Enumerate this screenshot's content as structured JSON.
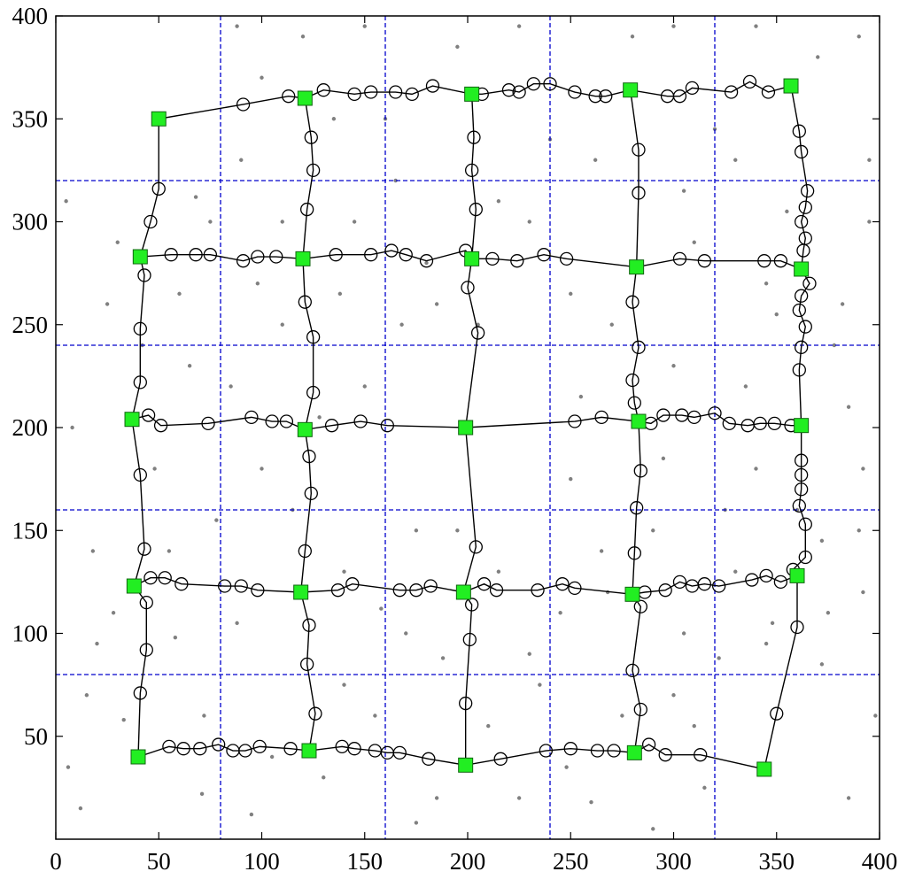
{
  "chart_data": {
    "type": "scatter",
    "xlim": [
      0,
      400
    ],
    "ylim": [
      0,
      400
    ],
    "xticks": [
      0,
      50,
      100,
      150,
      200,
      250,
      300,
      350,
      400
    ],
    "yticks": [
      50,
      100,
      150,
      200,
      250,
      300,
      350,
      400
    ],
    "grid_x": [
      80,
      160,
      240,
      320
    ],
    "grid_y": [
      80,
      160,
      240,
      320
    ],
    "grid_color": "#0000cc",
    "points": {
      "color": "#808080",
      "x": [
        12,
        33,
        71,
        95,
        130,
        175,
        210,
        260,
        300,
        315,
        20,
        55,
        88,
        140,
        170,
        230,
        265,
        305,
        345,
        390,
        8,
        65,
        100,
        150,
        250,
        300,
        340,
        385,
        25,
        75,
        110,
        145,
        185,
        230,
        270,
        310,
        350,
        395,
        90,
        120,
        160,
        195,
        240,
        280,
        320,
        370,
        395,
        5,
        30,
        60,
        85,
        115,
        140,
        175,
        215,
        245,
        290,
        330,
        375,
        398,
        385,
        360,
        335,
        255,
        250,
        205,
        180,
        135,
        100,
        88,
        150,
        225,
        300,
        340,
        390,
        18,
        48,
        72,
        105,
        155,
        185,
        225,
        275,
        290,
        310,
        330,
        355,
        378,
        392,
        372,
        325,
        295,
        268,
        235,
        188,
        158,
        128,
        98,
        68,
        42,
        15,
        6,
        28,
        58,
        78,
        110,
        165,
        215,
        262,
        305,
        345,
        382,
        392,
        372,
        348,
        322,
        248,
        195,
        168,
        138
      ],
      "y": [
        15,
        58,
        22,
        12,
        30,
        8,
        55,
        18,
        70,
        25,
        95,
        140,
        105,
        75,
        100,
        90,
        140,
        100,
        95,
        150,
        200,
        230,
        180,
        220,
        175,
        230,
        180,
        210,
        260,
        300,
        250,
        300,
        260,
        300,
        250,
        290,
        255,
        300,
        330,
        390,
        350,
        385,
        340,
        390,
        345,
        380,
        330,
        310,
        290,
        265,
        220,
        160,
        130,
        150,
        130,
        110,
        150,
        130,
        110,
        60,
        20,
        160,
        220,
        215,
        265,
        250,
        280,
        350,
        370,
        395,
        395,
        395,
        395,
        395,
        390,
        140,
        180,
        60,
        40,
        60,
        20,
        20,
        60,
        5,
        55,
        330,
        305,
        240,
        120,
        85,
        160,
        185,
        120,
        75,
        88,
        112,
        205,
        270,
        312,
        240,
        70,
        35,
        110,
        98,
        155,
        300,
        320,
        310,
        330,
        315,
        270,
        260,
        180,
        145,
        105,
        88,
        35,
        150,
        250,
        265
      ]
    },
    "paths": [
      {
        "color": "#000000",
        "x": [
          50,
          91,
          113,
          121,
          130,
          145,
          153,
          165,
          173,
          183,
          202,
          207,
          220,
          225,
          232,
          240,
          252,
          262,
          267,
          279,
          297,
          303,
          309,
          328,
          337,
          346,
          357
        ],
        "y": [
          350,
          357,
          361,
          360,
          364,
          362,
          363,
          363,
          362,
          366,
          362,
          362,
          364,
          363,
          367,
          367,
          363,
          361,
          361,
          364,
          361,
          361,
          365,
          363,
          368,
          363,
          366
        ]
      },
      {
        "color": "#000000",
        "x": [
          41,
          56,
          68,
          75,
          91,
          98,
          107,
          120,
          136,
          153,
          163,
          170,
          180,
          199,
          202,
          212,
          224,
          237,
          248,
          282,
          303,
          315,
          344,
          352,
          362
        ],
        "y": [
          283,
          284,
          284,
          284,
          281,
          283,
          283,
          282,
          284,
          284,
          286,
          284,
          281,
          286,
          282,
          282,
          281,
          284,
          282,
          278,
          282,
          281,
          281,
          281,
          277
        ]
      },
      {
        "color": "#000000",
        "x": [
          37,
          45,
          51,
          74,
          95,
          105,
          112,
          121,
          134,
          148,
          161,
          199,
          252,
          265,
          283,
          289,
          295,
          304,
          310,
          320,
          327,
          336,
          342,
          349,
          357,
          362
        ],
        "y": [
          204,
          206,
          201,
          202,
          205,
          203,
          203,
          199,
          201,
          203,
          201,
          200,
          203,
          205,
          203,
          202,
          206,
          206,
          205,
          207,
          202,
          201,
          202,
          202,
          201,
          201
        ]
      },
      {
        "color": "#000000",
        "x": [
          38,
          46,
          53,
          61,
          82,
          90,
          98,
          119,
          137,
          144,
          167,
          175,
          182,
          198,
          208,
          214,
          234,
          246,
          252,
          280,
          286,
          296,
          303,
          309,
          315,
          322,
          338,
          345,
          352,
          360
        ],
        "y": [
          123,
          127,
          127,
          124,
          123,
          123,
          121,
          120,
          121,
          124,
          121,
          121,
          123,
          120,
          124,
          121,
          121,
          124,
          122,
          119,
          120,
          121,
          125,
          123,
          124,
          123,
          126,
          128,
          125,
          128
        ]
      },
      {
        "color": "#000000",
        "x": [
          40,
          55,
          62,
          70,
          79,
          86,
          92,
          99,
          114,
          123,
          139,
          145,
          155,
          161,
          167,
          181,
          199,
          216,
          238,
          250,
          263,
          271,
          281,
          288,
          296,
          313,
          344
        ],
        "y": [
          40,
          45,
          44,
          44,
          46,
          43,
          43,
          45,
          44,
          43,
          45,
          44,
          43,
          42,
          42,
          39,
          36,
          39,
          43,
          44,
          43,
          43,
          42,
          46,
          41,
          41,
          34
        ]
      },
      {
        "color": "#000000",
        "x": [
          50,
          50,
          46,
          41,
          43,
          41,
          41,
          37,
          41,
          43,
          38,
          44,
          44,
          41,
          40
        ],
        "y": [
          350,
          316,
          300,
          283,
          274,
          248,
          222,
          204,
          177,
          141,
          123,
          115,
          92,
          71,
          40
        ]
      },
      {
        "color": "#000000",
        "x": [
          121,
          124,
          125,
          122,
          120,
          121,
          125,
          125,
          121,
          123,
          124,
          121,
          119,
          123,
          122,
          126,
          123
        ],
        "y": [
          360,
          341,
          325,
          306,
          282,
          261,
          244,
          217,
          199,
          186,
          168,
          140,
          120,
          104,
          85,
          61,
          43
        ]
      },
      {
        "color": "#000000",
        "x": [
          202,
          203,
          202,
          204,
          202,
          200,
          205,
          199,
          204,
          198,
          202,
          201,
          199,
          199
        ],
        "y": [
          362,
          341,
          325,
          306,
          282,
          268,
          246,
          200,
          142,
          120,
          114,
          97,
          66,
          36
        ]
      },
      {
        "color": "#000000",
        "x": [
          279,
          283,
          283,
          282,
          280,
          283,
          280,
          281,
          283,
          284,
          282,
          281,
          280,
          284,
          280,
          284,
          281
        ],
        "y": [
          364,
          335,
          314,
          278,
          261,
          239,
          223,
          212,
          203,
          179,
          161,
          139,
          119,
          113,
          82,
          63,
          42
        ]
      },
      {
        "color": "#000000",
        "x": [
          357,
          361,
          362,
          365,
          364,
          362,
          364,
          363,
          362,
          366,
          362,
          361,
          364,
          362,
          361,
          362,
          362,
          362,
          362,
          361,
          364,
          364,
          358,
          360,
          360,
          350,
          344
        ],
        "y": [
          366,
          344,
          334,
          315,
          307,
          300,
          292,
          286,
          277,
          270,
          264,
          257,
          249,
          239,
          228,
          201,
          184,
          177,
          170,
          162,
          153,
          137,
          131,
          128,
          103,
          61,
          34
        ]
      }
    ],
    "nodes": {
      "color": "#22ee22",
      "x": [
        50,
        121,
        202,
        279,
        357,
        41,
        120,
        202,
        282,
        362,
        37,
        121,
        199,
        283,
        362,
        38,
        119,
        198,
        280,
        360,
        40,
        123,
        199,
        281,
        344
      ],
      "y": [
        350,
        360,
        362,
        364,
        366,
        283,
        282,
        282,
        278,
        277,
        204,
        199,
        200,
        203,
        201,
        123,
        120,
        120,
        119,
        128,
        40,
        43,
        36,
        42,
        34
      ]
    }
  }
}
